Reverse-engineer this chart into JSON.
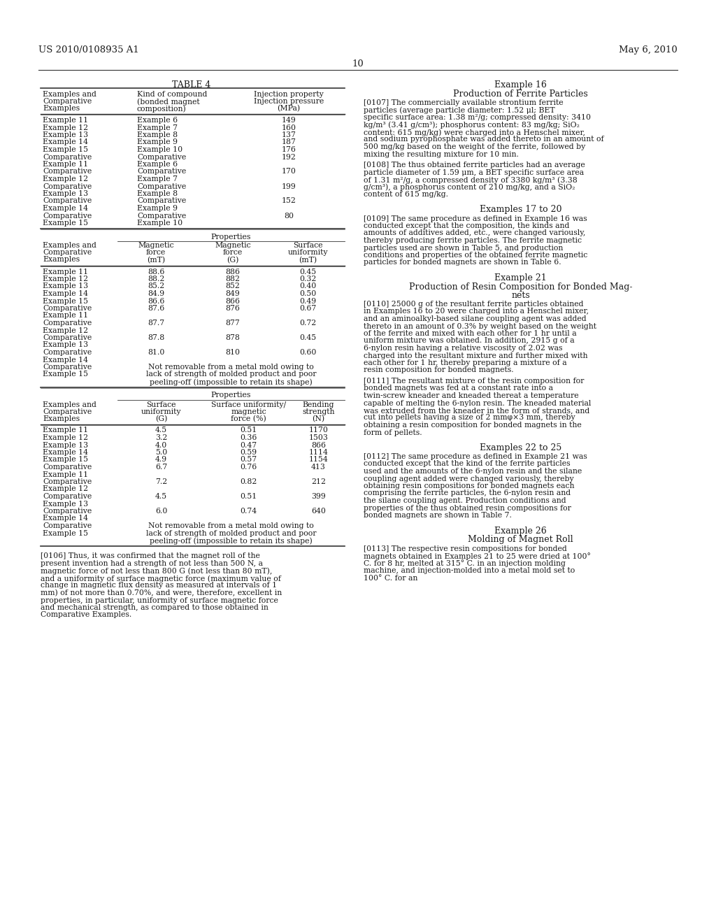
{
  "page_header_left": "US 2010/0108935 A1",
  "page_header_right": "May 6, 2010",
  "page_number": "10",
  "right_column_title1": "Example 16",
  "right_column_subtitle1": "Production of Ferrite Particles",
  "right_col_para1": "[0107]   The commercially available strontium ferrite particles (average particle diameter: 1.52 μl; BET specific surface area: 1.38 m²/g; compressed density: 3410 kg/m³ (3.41 g/cm³); phosphorus content: 83 mg/kg; SiO₂ content: 615 mg/kg) were charged into a Henschel mixer, and sodium pyrophosphate was added thereto in an amount of 500 mg/kg based on the weight of the ferrite, followed by mixing the resulting mixture for 10 min.",
  "right_col_para2": "[0108]   The thus obtained ferrite particles had an average particle diameter of 1.59 μm, a BET specific surface area of 1.31 m²/g, a compressed density of 3380 kg/m³ (3.38 g/cm³), a phosphorus content of 210 mg/kg, and a SiO₂ content of 615 mg/kg.",
  "right_column_title2": "Examples 17 to 20",
  "right_col_para3": "[0109]   The same procedure as defined in Example 16 was conducted except that the composition, the kinds and amounts of additives added, etc., were changed variously, thereby producing ferrite particles. The ferrite magnetic particles used are shown in Table 5, and production conditions and properties of the obtained ferrite magnetic particles for bonded magnets are shown in Table 6.",
  "right_column_title3": "Example 21",
  "right_column_subtitle3": "Production of Resin Composition for Bonded Mag-\nnets",
  "right_col_para4": "[0110]   25000 g of the resultant ferrite particles obtained in Examples 16 to 20 were charged into a Henschel mixer, and an aminoalkyl-based silane coupling agent was added thereto in an amount of 0.3% by weight based on the weight of the ferrite and mixed with each other for 1 hr until a uniform mixture was obtained. In addition, 2915 g of a 6-nylon resin having a relative viscosity of 2.02 was charged into the resultant mixture and further mixed with each other for 1 hr, thereby preparing a mixture of a resin composition for bonded magnets.",
  "right_col_para5": "[0111]   The resultant mixture of the resin composition for bonded magnets was fed at a constant rate into a twin-screw kneader and kneaded thereat a temperature capable of melting the 6-nylon resin. The kneaded material was extruded from the kneader in the form of strands, and cut into pellets having a size of 2 mmφ×3 mm, thereby obtaining a resin composition for bonded magnets in the form of pellets.",
  "right_column_title4": "Examples 22 to 25",
  "right_col_para6": "[0112]   The same procedure as defined in Example 21 was conducted except that the kind of the ferrite particles used and the amounts of the 6-nylon resin and the silane coupling agent added were changed variously, thereby obtaining resin compositions for bonded magnets each comprising the ferrite particles, the 6-nylon resin and the silane coupling agent. Production conditions and properties of the thus obtained resin compositions for bonded magnets are shown in Table 7.",
  "right_column_title5": "Example 26",
  "right_column_subtitle5": "Molding of Magnet Roll",
  "right_col_para7": "[0113]   The respective resin compositions for bonded magnets obtained in Examples 21 to 25 were dried at 100° C. for 8 hr, melted at 315° C. in an injection molding machine, and injection-molded into a metal mold set to 100° C. for an",
  "table_title": "TABLE 4",
  "table1_col_edges": [
    0,
    135,
    275,
    435
  ],
  "table1_headers": [
    [
      "Examples and",
      "Comparative",
      "Examples"
    ],
    [
      "Kind of compound",
      "(bonded magnet",
      "composition)"
    ],
    [
      "Injection property",
      "Injection pressure",
      "(MPa)"
    ]
  ],
  "table1_rows": [
    [
      "Example 11",
      "Example 6",
      "149"
    ],
    [
      "Example 12",
      "Example 7",
      "160"
    ],
    [
      "Example 13",
      "Example 8",
      "137"
    ],
    [
      "Example 14",
      "Example 9",
      "187"
    ],
    [
      "Example 15",
      "Example 10",
      "176"
    ],
    [
      "Comparative|Example 11",
      "Comparative|Example 6",
      "192"
    ],
    [
      "Comparative|Example 12",
      "Comparative|Example 7",
      "170"
    ],
    [
      "Comparative|Example 13",
      "Comparative|Example 8",
      "199"
    ],
    [
      "Comparative|Example 14",
      "Comparative|Example 9",
      "152"
    ],
    [
      "Comparative|Example 15",
      "Comparative|Example 10",
      "80"
    ]
  ],
  "table2_col_edges": [
    0,
    110,
    220,
    330,
    435
  ],
  "table2_headers": [
    [
      "Examples and",
      "Comparative",
      "Examples"
    ],
    [
      "Magnetic",
      "force",
      "(mT)"
    ],
    [
      "Magnetic",
      "force",
      "(G)"
    ],
    [
      "Surface",
      "uniformity",
      "(mT)"
    ]
  ],
  "table2_rows": [
    [
      "Example 11",
      "88.6",
      "886",
      "0.45"
    ],
    [
      "Example 12",
      "88.2",
      "882",
      "0.32"
    ],
    [
      "Example 13",
      "85.2",
      "852",
      "0.40"
    ],
    [
      "Example 14",
      "84.9",
      "849",
      "0.50"
    ],
    [
      "Example 15",
      "86.6",
      "866",
      "0.49"
    ],
    [
      "Comparative|Example 11",
      "87.6",
      "876",
      "0.67"
    ],
    [
      "Comparative|Example 12",
      "87.7",
      "877",
      "0.72"
    ],
    [
      "Comparative|Example 13",
      "87.8",
      "878",
      "0.45"
    ],
    [
      "Comparative|Example 14",
      "81.0",
      "810",
      "0.60"
    ],
    [
      "Comparative|Example 15",
      "SPAN:Not removable from a metal mold owing to|lack of strength of molded product and poor|peeling-off (impossible to retain its shape)",
      "",
      ""
    ]
  ],
  "table3_col_edges": [
    0,
    110,
    235,
    360,
    435
  ],
  "table3_headers": [
    [
      "Examples and",
      "Comparative",
      "Examples"
    ],
    [
      "Surface",
      "uniformity",
      "(G)"
    ],
    [
      "Surface uniformity/",
      "magnetic",
      "force (%)"
    ],
    [
      "Bending",
      "strength",
      "(N)"
    ]
  ],
  "table3_rows": [
    [
      "Example 11",
      "4.5",
      "0.51",
      "1170"
    ],
    [
      "Example 12",
      "3.2",
      "0.36",
      "1503"
    ],
    [
      "Example 13",
      "4.0",
      "0.47",
      "866"
    ],
    [
      "Example 14",
      "5.0",
      "0.59",
      "1114"
    ],
    [
      "Example 15",
      "4.9",
      "0.57",
      "1154"
    ],
    [
      "Comparative|Example 11",
      "6.7",
      "0.76",
      "413"
    ],
    [
      "Comparative|Example 12",
      "7.2",
      "0.82",
      "212"
    ],
    [
      "Comparative|Example 13",
      "4.5",
      "0.51",
      "399"
    ],
    [
      "Comparative|Example 14",
      "6.0",
      "0.74",
      "640"
    ],
    [
      "Comparative|Example 15",
      "SPAN:Not removable from a metal mold owing to|lack of strength of molded product and poor|peeling-off (impossible to retain its shape)",
      "",
      ""
    ]
  ],
  "left_col_para": "[0106]   Thus, it was confirmed that the magnet roll of the present invention had a strength of not less than 500 N, a magnetic force of not less than 800 G (not less than 80 mT), and a uniformity of surface magnetic force (maximum value of change in magnetic flux density as measured at intervals of 1 mm) of not more than 0.70%, and were, therefore, excellent in properties, in particular, uniformity of surface magnetic force and mechanical strength, as compared to those obtained in Comparative Examples.",
  "bg_color": "#ffffff",
  "text_color": "#1a1a1a",
  "font_size": 8.0
}
